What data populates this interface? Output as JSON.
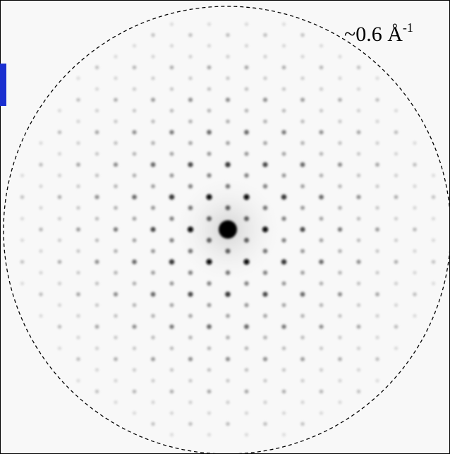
{
  "label": {
    "text": "~0.6 Å",
    "superscript": "-1"
  }
}
